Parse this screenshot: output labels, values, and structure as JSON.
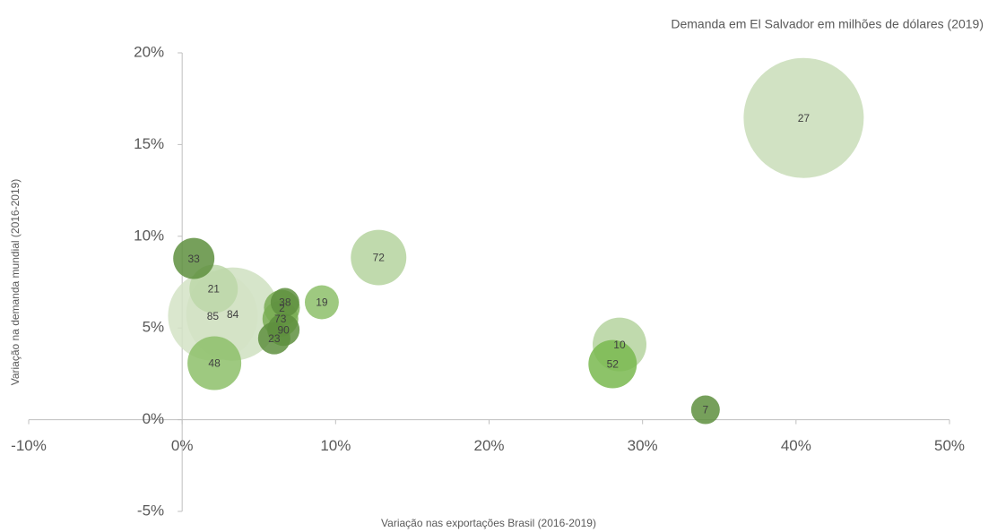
{
  "chart_data": {
    "type": "bubble",
    "size_label": "Demanda em El Salvador em milhões de dólares (2019)",
    "xlabel": "Variação nas exportações Brasil (2016-2019)",
    "ylabel": "Variação na demanda mundial (2016-2019)",
    "labels": [
      "27",
      "84",
      "85",
      "72",
      "48",
      "10",
      "21",
      "52",
      "33",
      "2",
      "73",
      "19",
      "90",
      "23",
      "38",
      "7"
    ],
    "x": [
      40.5,
      3.3,
      2.0,
      12.8,
      2.1,
      28.5,
      2.05,
      28.05,
      0.76,
      6.5,
      6.4,
      9.1,
      6.6,
      6.0,
      6.7,
      34.1
    ],
    "y": [
      16.45,
      5.76,
      5.66,
      8.84,
      3.08,
      4.1,
      7.13,
      3.03,
      8.79,
      6.1,
      5.5,
      6.4,
      4.9,
      4.44,
      6.4,
      0.54
    ],
    "sizes": [
      1122,
      676,
      625,
      240,
      225,
      225,
      182,
      182,
      132,
      100,
      100,
      90,
      81,
      81,
      64,
      64
    ],
    "colors": [
      "#c9ddb9",
      "#cfe0c1",
      "#d3e3c6",
      "#b5d39f",
      "#8dc06a",
      "#b5d39f",
      "#bcd7a8",
      "#79b84f",
      "#5e8f3e",
      "#7aae55",
      "#7aae55",
      "#8dc06a",
      "#5e8f3e",
      "#5e8f3e",
      "#5e8f3e",
      "#5e8f3e"
    ],
    "xlim": [
      -10,
      50
    ],
    "ylim": [
      -5,
      20
    ],
    "xticks": [
      {
        "value": -10,
        "label": "-10%"
      },
      {
        "value": 0,
        "label": "0%"
      },
      {
        "value": 10,
        "label": "10%"
      },
      {
        "value": 20,
        "label": "20%"
      },
      {
        "value": 30,
        "label": "30%"
      },
      {
        "value": 40,
        "label": "40%"
      },
      {
        "value": 50,
        "label": "50%"
      }
    ],
    "yticks": [
      {
        "value": -5,
        "label": "-5%"
      },
      {
        "value": 0,
        "label": "0%"
      },
      {
        "value": 5,
        "label": "5%"
      },
      {
        "value": 10,
        "label": "10%"
      },
      {
        "value": 15,
        "label": "15%"
      },
      {
        "value": 20,
        "label": "20%"
      }
    ]
  }
}
